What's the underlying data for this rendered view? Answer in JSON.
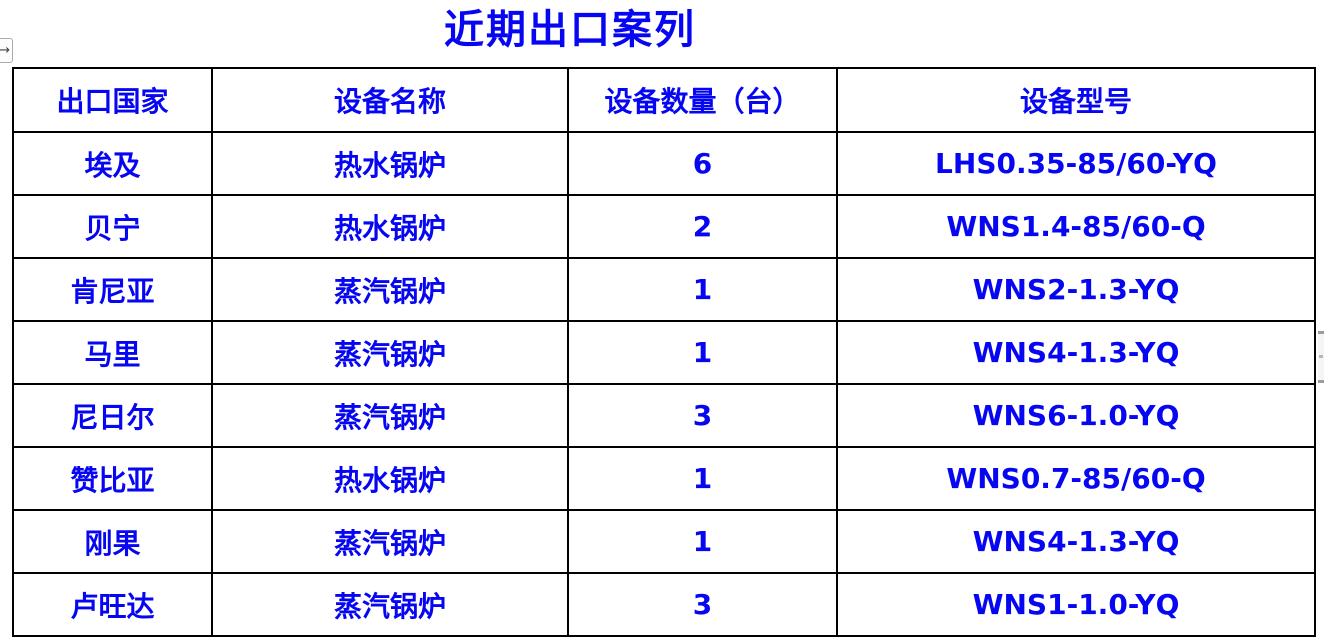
{
  "page": {
    "title": "近期出口案列",
    "text_color": "#0606f2",
    "border_color": "#000000",
    "background": "#ffffff"
  },
  "controls": {
    "expand_arrow": "→"
  },
  "table": {
    "headers": [
      "出口国家",
      "设备名称",
      "设备数量（台）",
      "设备型号"
    ],
    "rows": [
      [
        "埃及",
        "热水锅炉",
        "6",
        "LHS0.35-85/60-YQ"
      ],
      [
        "贝宁",
        "热水锅炉",
        "2",
        "WNS1.4-85/60-Q"
      ],
      [
        "肯尼亚",
        "蒸汽锅炉",
        "1",
        "WNS2-1.3-YQ"
      ],
      [
        "马里",
        "蒸汽锅炉",
        "1",
        "WNS4-1.3-YQ"
      ],
      [
        "尼日尔",
        "蒸汽锅炉",
        "3",
        "WNS6-1.0-YQ"
      ],
      [
        "赞比亚",
        "热水锅炉",
        "1",
        "WNS0.7-85/60-Q"
      ],
      [
        "刚果",
        "蒸汽锅炉",
        "1",
        "WNS4-1.3-YQ"
      ],
      [
        "卢旺达",
        "蒸汽锅炉",
        "3",
        "WNS1-1.0-YQ"
      ]
    ]
  }
}
